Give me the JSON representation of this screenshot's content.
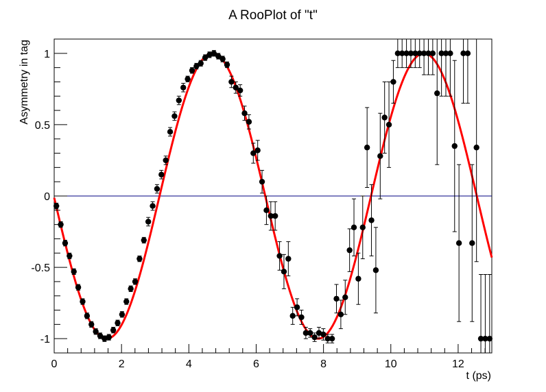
{
  "chart_data": {
    "type": "scatter",
    "title": "A RooPlot of \"t\"",
    "xlabel": "t (ps)",
    "ylabel": "Asymmetry in tag",
    "xlim": [
      0,
      13
    ],
    "ylim": [
      -1.1,
      1.1
    ],
    "x_ticks": [
      0,
      2,
      4,
      6,
      8,
      10,
      12
    ],
    "x_tick_labels": [
      "0",
      "2",
      "4",
      "6",
      "8",
      "10",
      "12"
    ],
    "y_ticks": [
      -1,
      -0.5,
      0,
      0.5,
      1
    ],
    "y_tick_labels": [
      "-1",
      "-0.5",
      "0",
      "0.5",
      "1"
    ],
    "grid": false,
    "colors": {
      "points": "#000000",
      "curve": "#ff0000",
      "zero_line": "#000080",
      "frame": "#000000"
    },
    "series": [
      {
        "kind": "points_with_errors",
        "x": [
          0.065,
          0.195,
          0.325,
          0.455,
          0.585,
          0.715,
          0.845,
          0.975,
          1.105,
          1.235,
          1.365,
          1.495,
          1.625,
          1.755,
          1.885,
          2.015,
          2.145,
          2.275,
          2.405,
          2.535,
          2.665,
          2.795,
          2.925,
          3.055,
          3.185,
          3.315,
          3.445,
          3.575,
          3.705,
          3.835,
          3.965,
          4.095,
          4.225,
          4.355,
          4.485,
          4.615,
          4.745,
          4.875,
          5.005,
          5.135,
          5.265,
          5.395,
          5.525,
          5.655,
          5.785,
          5.915,
          6.045,
          6.175,
          6.305,
          6.435,
          6.565,
          6.695,
          6.825,
          6.955,
          7.085,
          7.215,
          7.345,
          7.475,
          7.605,
          7.735,
          7.865,
          7.995,
          8.125,
          8.255,
          8.385,
          8.515,
          8.645,
          8.775,
          8.905,
          9.035,
          9.165,
          9.295,
          9.425,
          9.555,
          9.685,
          9.815,
          9.945,
          10.075,
          10.205,
          10.335,
          10.465,
          10.595,
          10.725,
          10.855,
          10.985,
          11.115,
          11.245,
          11.375,
          11.505,
          11.635,
          11.765,
          11.895,
          12.025,
          12.155,
          12.285,
          12.415,
          12.545,
          12.675,
          12.805,
          12.935
        ],
        "y": [
          -0.07,
          -0.2,
          -0.33,
          -0.42,
          -0.53,
          -0.64,
          -0.74,
          -0.84,
          -0.9,
          -0.95,
          -0.98,
          -1.0,
          -0.99,
          -0.94,
          -0.89,
          -0.83,
          -0.74,
          -0.65,
          -0.6,
          -0.44,
          -0.31,
          -0.18,
          -0.07,
          0.05,
          0.15,
          0.25,
          0.45,
          0.56,
          0.67,
          0.76,
          0.82,
          0.88,
          0.91,
          0.93,
          0.97,
          0.99,
          1.0,
          0.98,
          0.96,
          0.92,
          0.8,
          0.76,
          0.74,
          0.58,
          0.52,
          0.3,
          0.32,
          0.1,
          -0.1,
          -0.14,
          -0.14,
          -0.42,
          -0.53,
          -0.44,
          -0.84,
          -0.78,
          -0.85,
          -0.96,
          -0.96,
          -0.99,
          -0.96,
          -0.97,
          -1.0,
          -1.0,
          -0.72,
          -0.83,
          -0.71,
          -0.38,
          -0.22,
          -0.58,
          -0.22,
          0.34,
          -0.17,
          -0.52,
          0.28,
          0.55,
          0.5,
          0.8,
          1.0,
          1.0,
          1.0,
          1.0,
          1.0,
          1.0,
          1.0,
          1.0,
          1.0,
          0.72,
          1.0,
          1.0,
          1.0,
          0.35,
          -0.33,
          1.0,
          1.0,
          -0.33,
          0.34,
          -1.0,
          -1.0,
          -1.0
        ],
        "yerr": [
          0.02,
          0.02,
          0.02,
          0.02,
          0.02,
          0.02,
          0.02,
          0.02,
          0.02,
          0.02,
          0.02,
          0.02,
          0.02,
          0.02,
          0.02,
          0.02,
          0.02,
          0.02,
          0.02,
          0.02,
          0.02,
          0.03,
          0.03,
          0.03,
          0.03,
          0.03,
          0.03,
          0.03,
          0.03,
          0.03,
          0.02,
          0.02,
          0.02,
          0.02,
          0.02,
          0.02,
          0.02,
          0.02,
          0.02,
          0.02,
          0.04,
          0.04,
          0.04,
          0.05,
          0.05,
          0.07,
          0.07,
          0.08,
          0.1,
          0.1,
          0.1,
          0.1,
          0.12,
          0.12,
          0.06,
          0.06,
          0.05,
          0.04,
          0.03,
          0.03,
          0.04,
          0.04,
          0.03,
          0.03,
          0.1,
          0.1,
          0.12,
          0.15,
          0.2,
          0.18,
          0.22,
          0.28,
          0.25,
          0.3,
          0.3,
          0.25,
          0.3,
          0.15,
          0.1,
          0.1,
          0.1,
          0.1,
          0.1,
          0.1,
          0.15,
          0.15,
          0.15,
          0.5,
          0.3,
          0.3,
          0.3,
          0.6,
          0.55,
          0.35,
          0.35,
          0.55,
          0.8,
          0.45,
          0.45,
          0.45
        ]
      },
      {
        "kind": "curve",
        "function": "cos(w*(t - t0))",
        "w": 1.0,
        "t0": 4.7
      }
    ],
    "reference_line": {
      "y": 0
    }
  }
}
